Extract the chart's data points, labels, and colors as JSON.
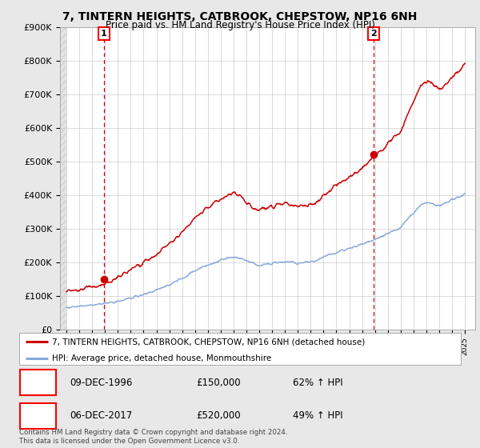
{
  "title": "7, TINTERN HEIGHTS, CATBROOK, CHEPSTOW, NP16 6NH",
  "subtitle": "Price paid vs. HM Land Registry's House Price Index (HPI)",
  "property_label": "7, TINTERN HEIGHTS, CATBROOK, CHEPSTOW, NP16 6NH (detached house)",
  "hpi_label": "HPI: Average price, detached house, Monmouthshire",
  "annotation1_date": "09-DEC-1996",
  "annotation1_price": "£150,000",
  "annotation1_hpi": "62% ↑ HPI",
  "annotation2_date": "06-DEC-2017",
  "annotation2_price": "£520,000",
  "annotation2_hpi": "49% ↑ HPI",
  "footer": "Contains HM Land Registry data © Crown copyright and database right 2024.\nThis data is licensed under the Open Government Licence v3.0.",
  "property_color": "#cc0000",
  "hpi_color": "#88aadd",
  "fig_bg_color": "#e8e8e8",
  "plot_bg_color": "#ffffff",
  "sale1_year": 1996.92,
  "sale1_price": 150000,
  "sale2_year": 2017.92,
  "sale2_price": 520000,
  "hpi_base_values": [
    65000,
    68000,
    72000,
    78000,
    84000,
    93000,
    104000,
    116000,
    133000,
    152000,
    174000,
    191000,
    204000,
    215000,
    204000,
    191000,
    197000,
    201000,
    197000,
    201000,
    215000,
    229000,
    241000,
    254000,
    268000,
    285000,
    305000,
    348000,
    378000,
    368000,
    385000,
    402000
  ],
  "prop_base_values": [
    115000,
    119000,
    125000,
    138000,
    155000,
    176000,
    200000,
    222000,
    255000,
    289000,
    330000,
    362000,
    385000,
    406000,
    380000,
    355000,
    368000,
    374000,
    365000,
    372000,
    398000,
    428000,
    452000,
    480000,
    515000,
    552000,
    592000,
    680000,
    740000,
    718000,
    752000,
    790000
  ],
  "years_base": [
    1994,
    1995,
    1996,
    1997,
    1998,
    1999,
    2000,
    2001,
    2002,
    2003,
    2004,
    2005,
    2006,
    2007,
    2008,
    2009,
    2010,
    2011,
    2012,
    2013,
    2014,
    2015,
    2016,
    2017,
    2018,
    2019,
    2020,
    2021,
    2022,
    2023,
    2024,
    2025
  ]
}
